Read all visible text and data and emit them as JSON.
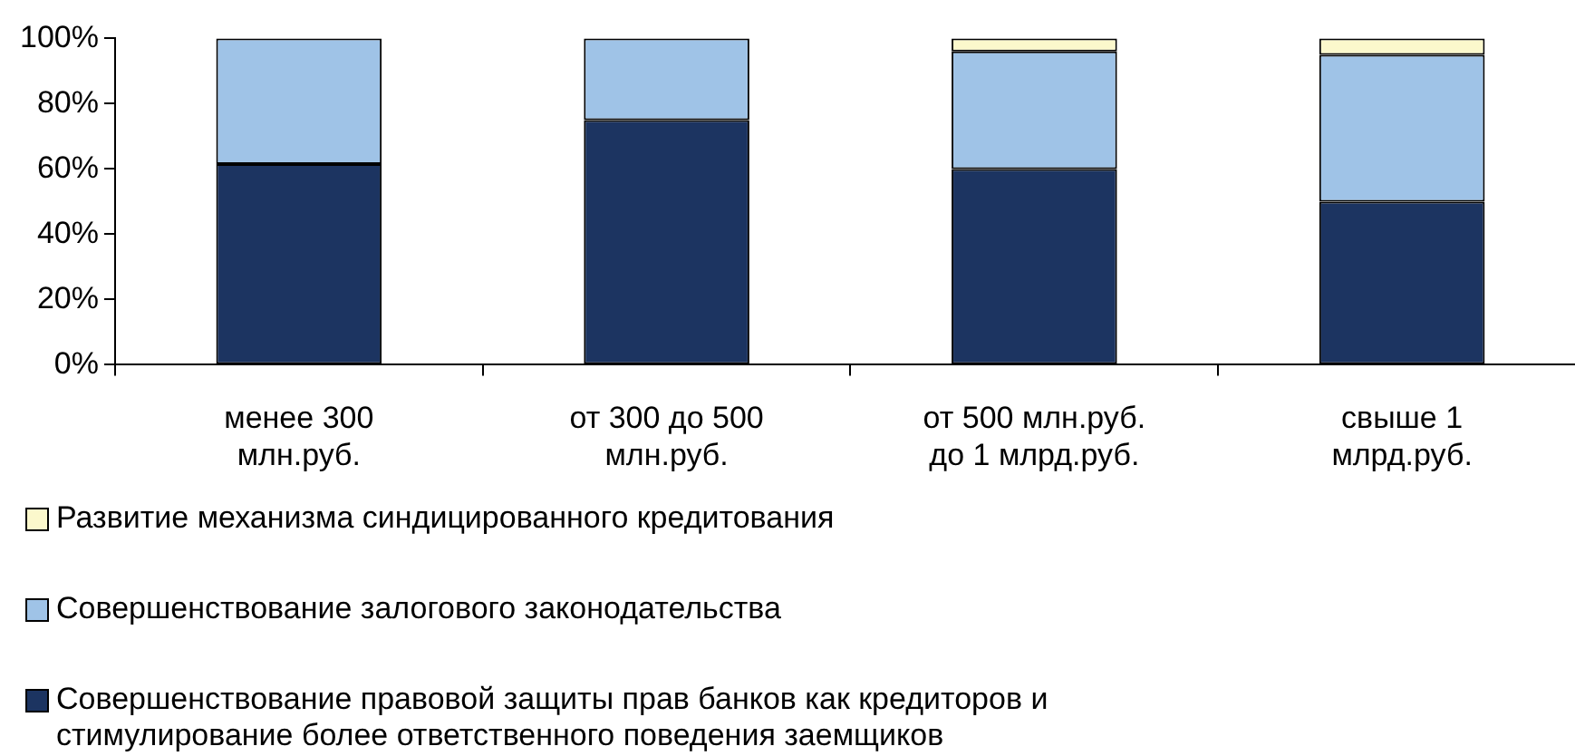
{
  "chart_data": {
    "type": "bar",
    "stacked": true,
    "categories": [
      "менее 300 млн.руб.",
      "от 300 до 500 млн.руб.",
      "от 500 млн.руб. до 1 млрд.руб.",
      "свыше 1 млрд.руб."
    ],
    "series": [
      {
        "name": "Совершенствование правовой защиты прав банков как кредиторов и стимулирование более ответственного поведения заемщиков",
        "color": "#1c3461",
        "values": [
          61.5,
          75,
          60,
          50
        ]
      },
      {
        "name": "Совершенствование залогового законодательства",
        "color": "#9fc3e7",
        "values": [
          38.5,
          25,
          36,
          45
        ]
      },
      {
        "name": "Развитие механизма синдицированного кредитования",
        "color": "#fbf8cc",
        "values": [
          0,
          0,
          4,
          5
        ]
      }
    ],
    "ylim": [
      0,
      100
    ],
    "yticks": [
      {
        "value": 0,
        "label": "0%"
      },
      {
        "value": 20,
        "label": "20%"
      },
      {
        "value": 40,
        "label": "40%"
      },
      {
        "value": 60,
        "label": "60%"
      },
      {
        "value": 80,
        "label": "80%"
      },
      {
        "value": 100,
        "label": "100%"
      }
    ],
    "grid": false,
    "legend": "bottom"
  }
}
